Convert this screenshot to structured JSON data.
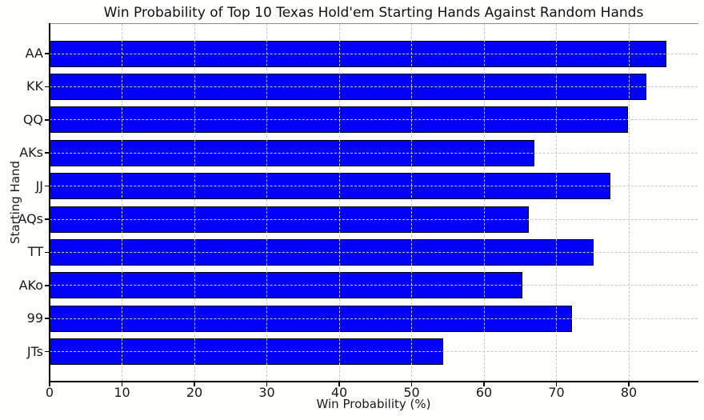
{
  "figure": {
    "background": "#fefefd"
  },
  "chart_data": {
    "type": "bar",
    "orientation": "horizontal",
    "title": "Win Probability of Top 10 Texas Hold'em Starting Hands Against Random Hands",
    "xlabel": "Win Probability (%)",
    "ylabel": "Starting Hand",
    "categories": [
      "AA",
      "KK",
      "QQ",
      "AKs",
      "JJ",
      "AQs",
      "TT",
      "AKo",
      "99",
      "JTs"
    ],
    "values": [
      85.2,
      82.4,
      79.9,
      67.0,
      77.5,
      66.2,
      75.1,
      65.3,
      72.1,
      54.4
    ],
    "xticks": [
      0,
      10,
      20,
      30,
      40,
      50,
      60,
      70,
      80
    ],
    "xlim": [
      0,
      89.5
    ],
    "grid": true,
    "grid_style": "dashed",
    "grid_color": "#c9c9c9",
    "bar_color": "#0202f6",
    "bar_edge_color": "#000000",
    "legend": null
  }
}
